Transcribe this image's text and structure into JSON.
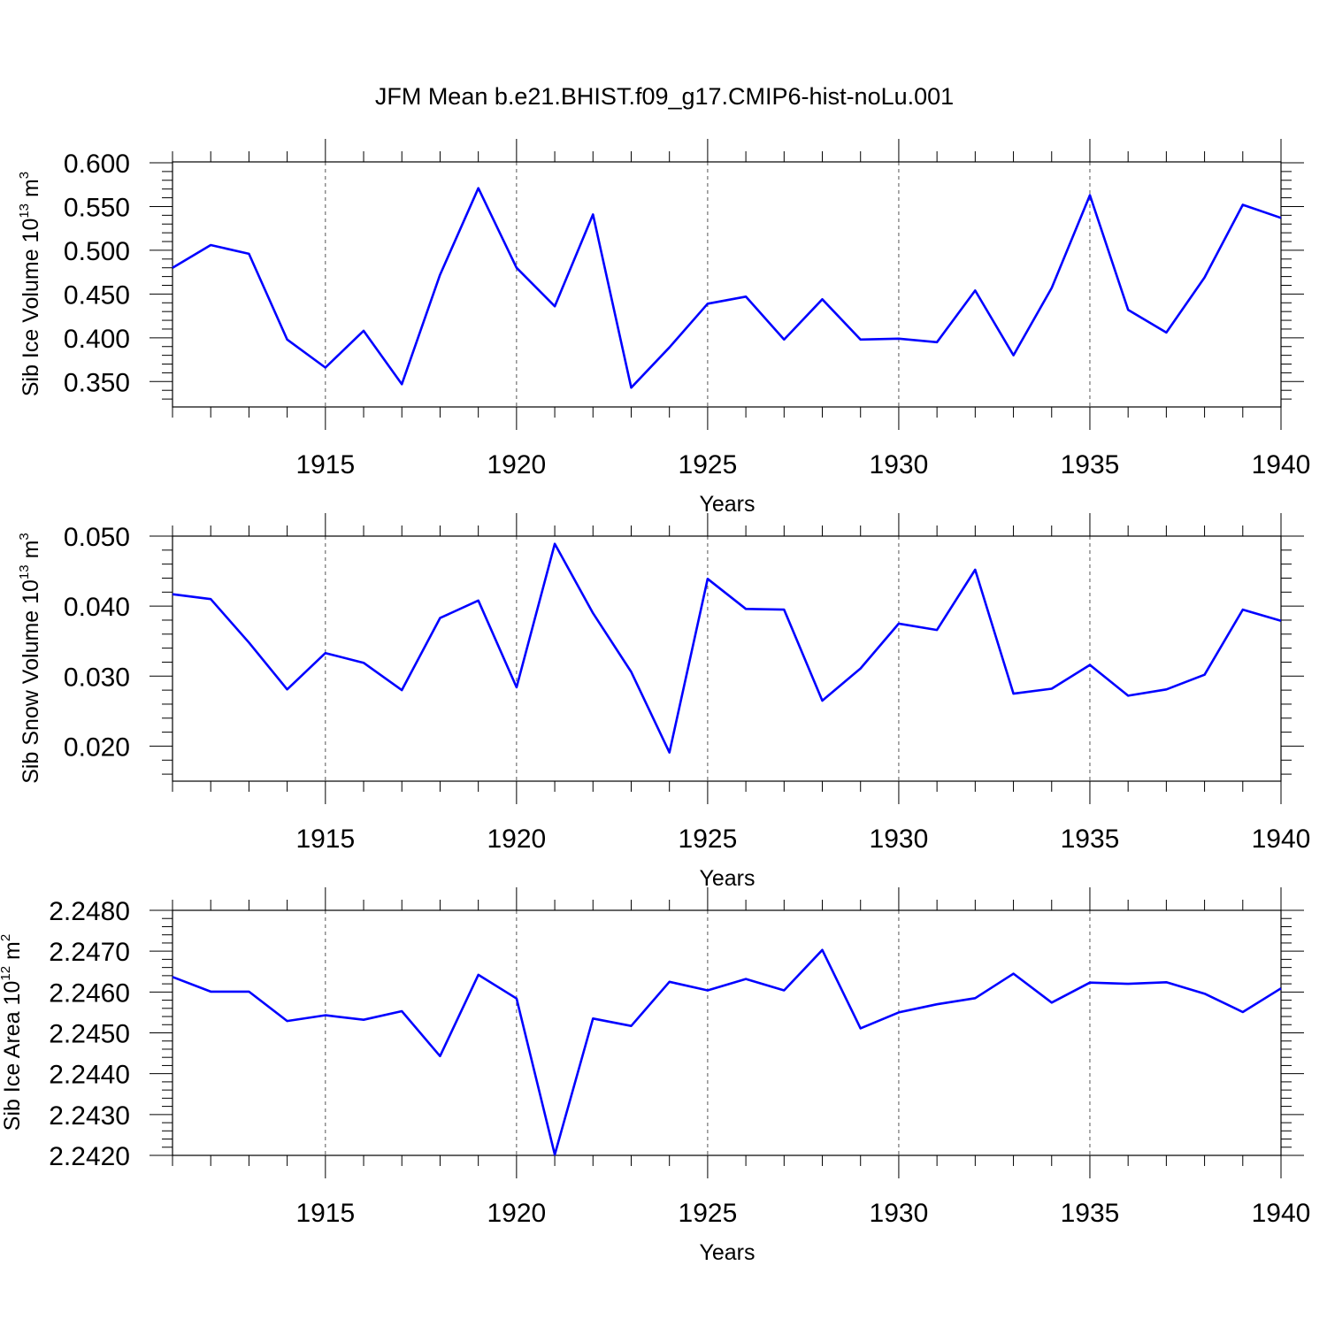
{
  "figure_title": "JFM Mean b.e21.BHIST.f09_g17.CMIP6-hist-noLu.001",
  "colors": {
    "line": "#0000ff",
    "axis": "#000000",
    "grid": "#555555"
  },
  "chart_data": [
    {
      "type": "line",
      "title": "JFM Mean b.e21.BHIST.f09_g17.CMIP6-hist-noLu.001",
      "xlabel": "Years",
      "ylabel": {
        "text": "Sib Ice Volume 10",
        "sup": "13",
        "unit": " m",
        "unit_sup": "3"
      },
      "xlim": [
        1911,
        1940
      ],
      "ylim": [
        0.321,
        0.601
      ],
      "xticks": [
        1915,
        1920,
        1925,
        1930,
        1935,
        1940
      ],
      "yticks": [
        0.35,
        0.4,
        0.45,
        0.5,
        0.55,
        0.6
      ],
      "ytick_labels": [
        "0.350",
        "0.400",
        "0.450",
        "0.500",
        "0.550",
        "0.600"
      ],
      "grid": "vertical dashed at x ticks",
      "x": [
        1911,
        1912,
        1913,
        1914,
        1915,
        1916,
        1917,
        1918,
        1919,
        1920,
        1921,
        1922,
        1923,
        1924,
        1925,
        1926,
        1927,
        1928,
        1929,
        1930,
        1931,
        1932,
        1933,
        1934,
        1935,
        1936,
        1937,
        1938,
        1939,
        1940
      ],
      "series": [
        {
          "color": "#0000ff",
          "values": [
            0.48,
            0.506,
            0.496,
            0.398,
            0.366,
            0.408,
            0.347,
            0.472,
            0.571,
            0.48,
            0.436,
            0.541,
            0.343,
            0.389,
            0.439,
            0.447,
            0.398,
            0.444,
            0.398,
            0.399,
            0.395,
            0.454,
            0.38,
            0.457,
            0.563,
            0.432,
            0.406,
            0.469,
            0.552,
            0.537
          ]
        }
      ]
    },
    {
      "type": "line",
      "xlabel": "Years",
      "ylabel": {
        "text": "Sib Snow Volume 10",
        "sup": "13",
        "unit": " m",
        "unit_sup": "3"
      },
      "xlim": [
        1911,
        1940
      ],
      "ylim": [
        0.015,
        0.05
      ],
      "xticks": [
        1915,
        1920,
        1925,
        1930,
        1935,
        1940
      ],
      "yticks": [
        0.02,
        0.03,
        0.04,
        0.05
      ],
      "ytick_labels": [
        "0.020",
        "0.030",
        "0.040",
        "0.050"
      ],
      "grid": "vertical dashed at x ticks",
      "x": [
        1911,
        1912,
        1913,
        1914,
        1915,
        1916,
        1917,
        1918,
        1919,
        1920,
        1921,
        1922,
        1923,
        1924,
        1925,
        1926,
        1927,
        1928,
        1929,
        1930,
        1931,
        1932,
        1933,
        1934,
        1935,
        1936,
        1937,
        1938,
        1939,
        1940
      ],
      "series": [
        {
          "color": "#0000ff",
          "values": [
            0.0417,
            0.041,
            0.0348,
            0.0281,
            0.0333,
            0.0319,
            0.028,
            0.0383,
            0.0408,
            0.0284,
            0.0489,
            0.039,
            0.0306,
            0.0191,
            0.0439,
            0.0396,
            0.0395,
            0.0265,
            0.0311,
            0.0375,
            0.0366,
            0.0452,
            0.0275,
            0.0282,
            0.0316,
            0.0272,
            0.0281,
            0.0302,
            0.0395,
            0.0379
          ]
        }
      ]
    },
    {
      "type": "line",
      "xlabel": "Years",
      "ylabel": {
        "text": "Sib Ice Area 10",
        "sup": "12",
        "unit": " m",
        "unit_sup": "2"
      },
      "xlim": [
        1911,
        1940
      ],
      "ylim": [
        2.242,
        2.248
      ],
      "xticks": [
        1915,
        1920,
        1925,
        1930,
        1935,
        1940
      ],
      "yticks": [
        2.242,
        2.243,
        2.244,
        2.245,
        2.246,
        2.247,
        2.248
      ],
      "ytick_labels": [
        "2.2420",
        "2.2430",
        "2.2440",
        "2.2450",
        "2.2460",
        "2.2470",
        "2.2480"
      ],
      "grid": "vertical dashed at x ticks",
      "x": [
        1911,
        1912,
        1913,
        1914,
        1915,
        1916,
        1917,
        1918,
        1919,
        1920,
        1921,
        1922,
        1923,
        1924,
        1925,
        1926,
        1927,
        1928,
        1929,
        1930,
        1931,
        1932,
        1933,
        1934,
        1935,
        1936,
        1937,
        1938,
        1939,
        1940
      ],
      "series": [
        {
          "color": "#0000ff",
          "values": [
            2.24637,
            2.24601,
            2.24601,
            2.24529,
            2.24543,
            2.24532,
            2.24553,
            2.24443,
            2.24642,
            2.24584,
            2.24202,
            2.24535,
            2.24517,
            2.24625,
            2.24604,
            2.24632,
            2.24604,
            2.24703,
            2.24511,
            2.2455,
            2.2457,
            2.24585,
            2.24645,
            2.24574,
            2.24623,
            2.2462,
            2.24624,
            2.24596,
            2.24551,
            2.24609
          ]
        }
      ]
    }
  ]
}
